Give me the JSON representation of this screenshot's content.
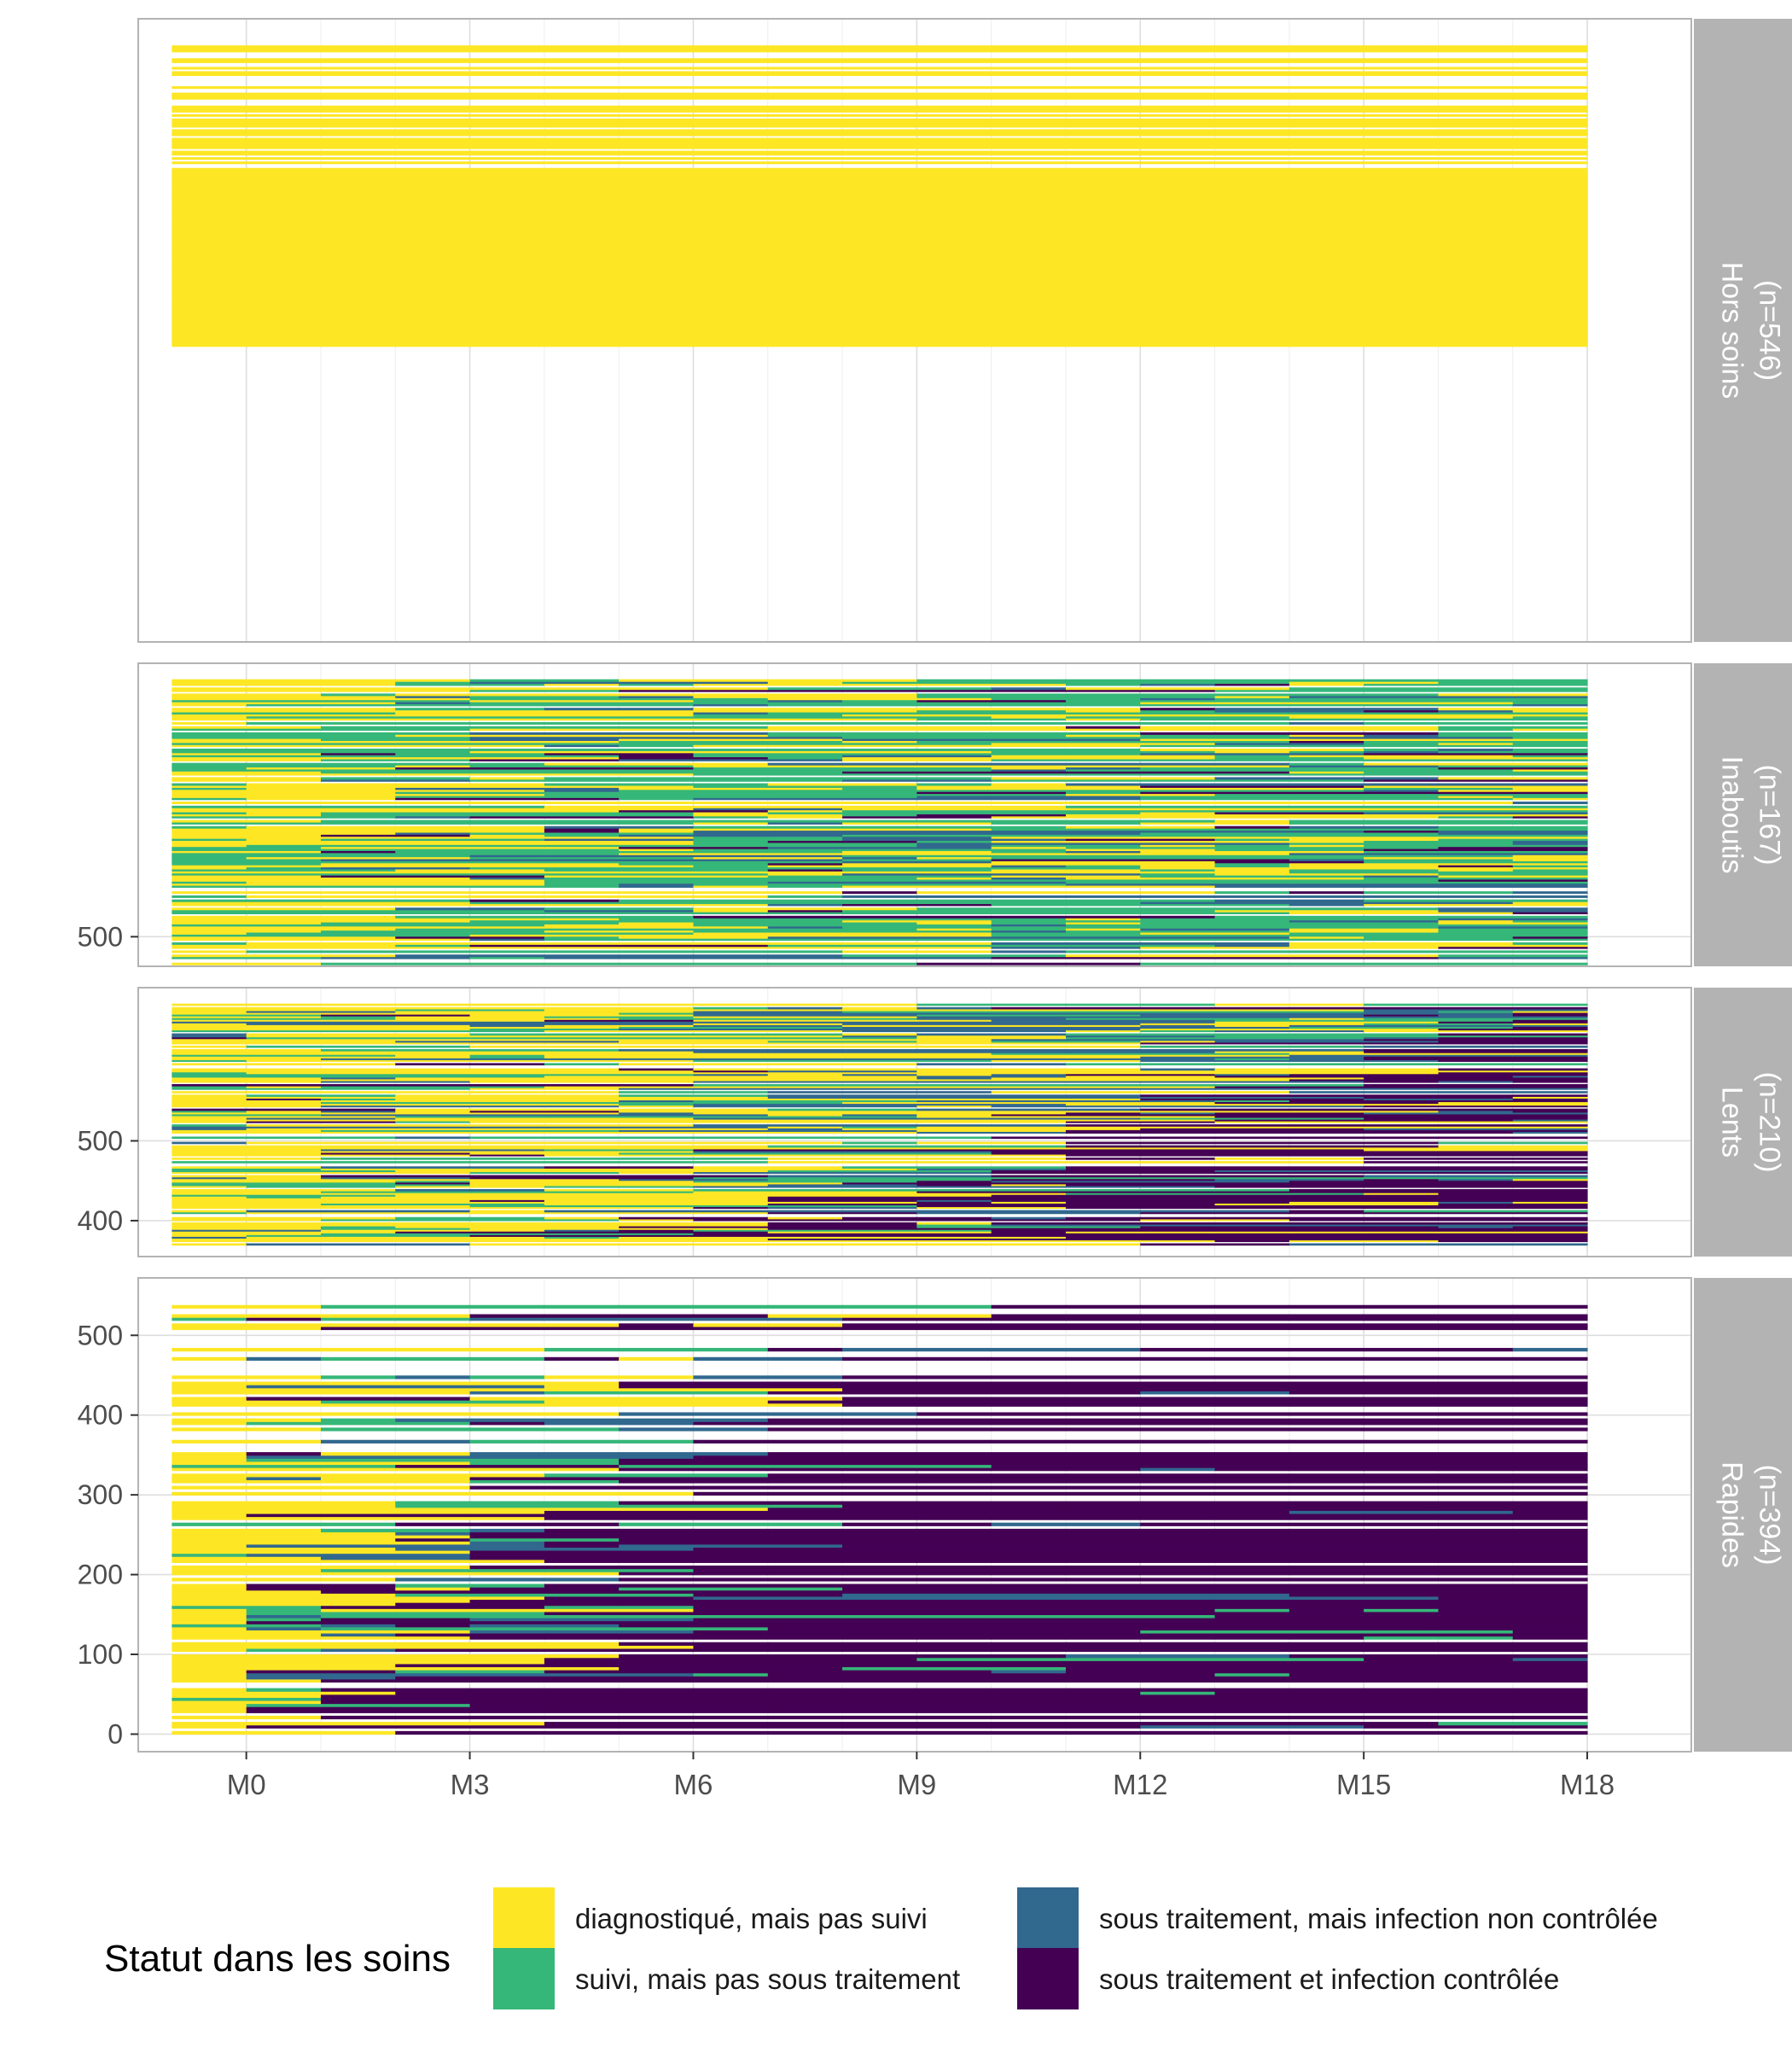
{
  "chart_data": {
    "type": "heatmap",
    "title": "",
    "xlabel": "",
    "ylabel": "",
    "x_categories": [
      "M0",
      "M1",
      "M2",
      "M3",
      "M4",
      "M5",
      "M6",
      "M7",
      "M8",
      "M9",
      "M10",
      "M11",
      "M12",
      "M13",
      "M14",
      "M15",
      "M16",
      "M17",
      "M18"
    ],
    "x_tick_labels": [
      "M0",
      "M3",
      "M6",
      "M9",
      "M12",
      "M15",
      "M18"
    ],
    "legend": {
      "title": "Statut dans les soins",
      "position": "bottom",
      "items": [
        {
          "label": "diagnostiqué, mais pas suivi",
          "color": "#FDE725"
        },
        {
          "label": "suivi, mais pas sous traitement",
          "color": "#35B779"
        },
        {
          "label": "sous traitement, mais infection non contrôlée",
          "color": "#31688E"
        },
        {
          "label": "sous traitement et infection contrôlée",
          "color": "#440154"
        }
      ]
    },
    "panels": [
      {
        "label": "Hors soins",
        "n_label": "(n=546)",
        "n": 546,
        "ylim": [
          -20,
          1245
        ],
        "y_ticks": [],
        "data_range": [
          580,
          1191
        ],
        "compositions": [
          "yyyyyyyyyyyyyyyyyyyy",
          "yyyyyyyyyyyyyyyyyyyy",
          "yyyyyyyyyyyyyyyyyyyy",
          "yyyyyyyyyyyyyyyyyyyy",
          "yyyyyyyyyyyyyyyyyyyy",
          "yyyyyyyyyyyyyyyyyyyy",
          "yyyyyyyyyyyyyyyyyyyy",
          "yyyyyyyyyyyyyyyyyyyy",
          "yyyyyyyyyyyyyyyyyyyy",
          "yyyyyyyyyyyyyyyyyyyy",
          "yyyyyyyyyyyyyyyyyyyy",
          "yyyyyyyyyyyyyyyyyyyy",
          "yyyyyyyyyyyyyyyyyyyy",
          "yyyyyyyyyyyyyyyyyyyy",
          "yyyyyyyyyyyyyyyyyyyy",
          "yyyyyyyyyyyyyyyyyyyy",
          "yyyyyyyyyyyyyyyyyyyy",
          "yyyyyyyyyyyyyyyyyyyy",
          "yyyyyyyyyyyyyyyyyyyg"
        ]
      },
      {
        "label": "Inaboutis",
        "n_label": "(n=167)",
        "n": 167,
        "ylim": [
          463,
          842
        ],
        "y_ticks": [
          500
        ],
        "data_range": [
          465,
          822
        ],
        "compositions": [
          "yyyyyyyyyyyyyyyyyyyy",
          "yyyyyyyyyyyyyyyyyyyg",
          "yyyyyyyyyyyyyyyyyyyg",
          "yyyyyyyyyyyyyyyyyyyy",
          "yyyyyyyyyyyyyyyyyyyy",
          "yyyyyyyyyyyyyyyyyyyy",
          "yyyyyyyyyyyyyyyyyyyy",
          "yyyyyyyyyyyyyyyyyyyy",
          "yyyyyyyyyyyyyyyyyyyy",
          "yyyyyyyyyyyyyyyyyyyy",
          "yyyyyyyyyyyyyyyyyyyy",
          "yyyyyyyyyyyyyyyyyyyy",
          "yyyyyyyyyyyyyyyyyyyy",
          "yyyyyyyyyyyyyyyyyyyy",
          "yyyyyyyyyyyyyyyyyyyy",
          "yyyyyyyyyyyyyyyyyyyy",
          "yyyyyyyyyyyyyyyyyyyy",
          "yyyyyyyyyyyyyyyyyyyy",
          "yyyyyyyyyyyyyyyyyyyy"
        ]
      },
      {
        "label": "Lents",
        "n_label": "(n=210)",
        "n": 210,
        "ylim": [
          355,
          692
        ],
        "y_ticks": [
          400,
          500
        ],
        "data_range": [
          365,
          672
        ],
        "compositions": [
          "yyyyyyyyyyyyyyyyyyyy",
          "yyyyyyyyyyyyyyyyyyyy",
          "yyyyyyyyyyyyyyyyyyyy",
          "yyyyyyyyyyyyyyyyyyyy",
          "yyyyyyyyyyyyyyyyyyyy",
          "yyyyyyyyyyyyyyyyyyyy",
          "yyyyyyyyyyyyyyyyyyyy",
          "yyyyyyyyyyyyyyyyyyyy",
          "yyyyyyyyyyyyyyyyyyyy",
          "yyyyyyyyyyyyyyyyyyyy",
          "yyyyyyyyyyyyyyyyyyyy",
          "yyyyyyyyyyyyyyyyyyyy",
          "yyyyyyyyyyyyyyyyyyyy",
          "yyyyyyyyyyyyyyyyyyyy",
          "yyyyyyyyyyyyyyyyyyyy",
          "yyyyyyyyyyyyyyyyyyyy",
          "yyyyyyyyyyyyyyyyyyyy",
          "yyyyyyyyyyyyyyyyyyyy",
          "yyyyyyyyyyyyyyyyyyyy"
        ]
      },
      {
        "label": "Rapides",
        "n_label": "(n=394)",
        "n": 394,
        "ylim": [
          -22,
          572
        ],
        "y_ticks": [
          0,
          100,
          200,
          300,
          400,
          500
        ],
        "data_range": [
          0,
          538
        ],
        "compositions": [
          "yyyyyyyyyyyyyyyyyyyy",
          "yyyyyyyyyyyyyyyyyyyy",
          "yyyyyyyyyyyyyyyyyyyy",
          "yyyyyyyyyyyyyyyyyyyy",
          "yyyyyyyyyyyyyyyyyyyy",
          "yyyyyyyyyyyyyyyyyyyy",
          "yyyyyyyyyyyyyyyyyyyy",
          "yyyyyyyyyyyyyyyyyyyy",
          "yyyyyyyyyyyyyyyyyyyy",
          "yyyyyyyyyyyyyyyyyyyy",
          "yyyyyyyyyyyyyyyyyyyy",
          "yyyyyyyyyyyyyyyyyyyy",
          "yyyyyyyyyyyyyyyyyyyy",
          "yyyyyyyyyyyyyyyyyyyy",
          "yyyyyyyyyyyyyyyyyyyy",
          "yyyyyyyyyyyyyyyyyyyy",
          "yyyyyyyyyyyyyyyyyyyy",
          "yyyyyyyyyyyyyyyyyyyy",
          "yyyyyyyyyyyyyyyyyyyy"
        ]
      }
    ]
  }
}
